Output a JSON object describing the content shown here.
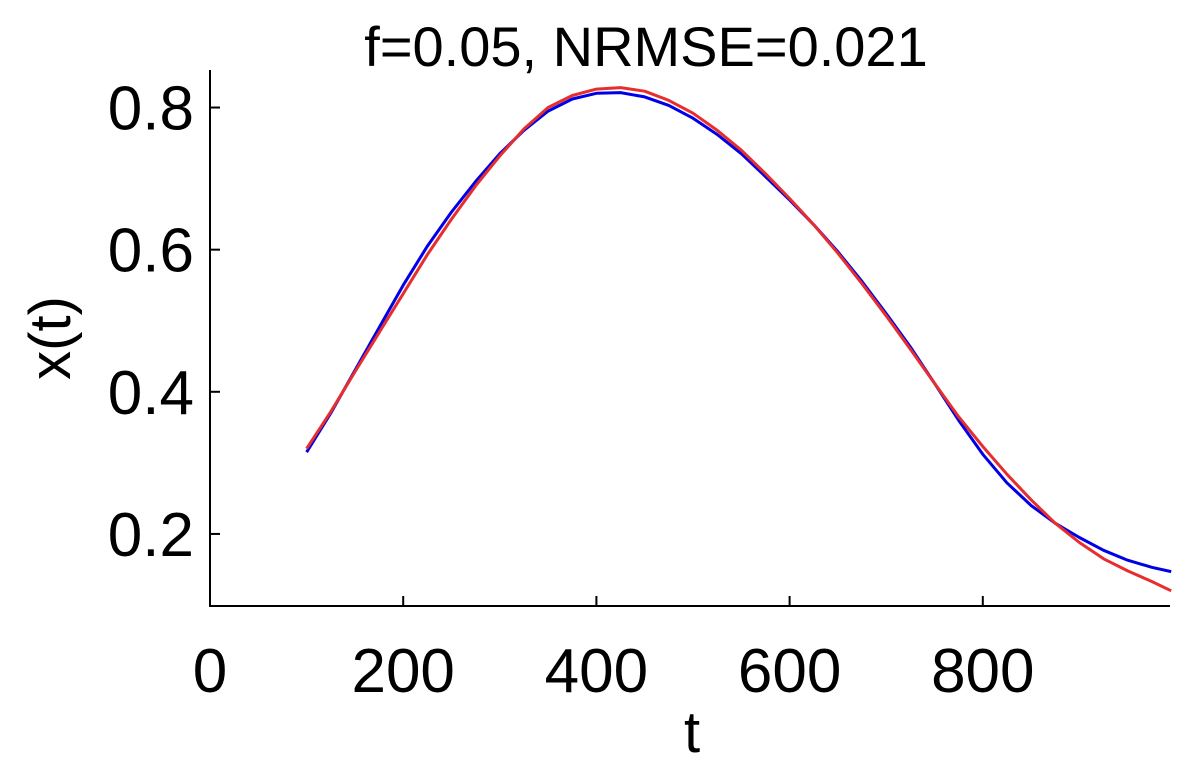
{
  "chart_data": {
    "type": "line",
    "title": "f=0.05, NRMSE=0.021",
    "xlabel": "t",
    "ylabel": "x(t)",
    "xlim": [
      0,
      1000
    ],
    "ylim": [
      0.1,
      0.85
    ],
    "xticks": [
      0,
      200,
      400,
      600,
      800
    ],
    "yticks": [
      0.2,
      0.4,
      0.6,
      0.8
    ],
    "xtick_labels": [
      "0",
      "200",
      "400",
      "600",
      "800"
    ],
    "ytick_labels": [
      "0.2",
      "0.4",
      "0.6",
      "0.8"
    ],
    "grid": false,
    "series": [
      {
        "color": "#0000e6",
        "x": [
          100,
          125,
          150,
          175,
          200,
          225,
          250,
          275,
          300,
          325,
          350,
          375,
          400,
          425,
          450,
          475,
          500,
          525,
          550,
          575,
          600,
          625,
          650,
          675,
          700,
          725,
          750,
          775,
          800,
          825,
          850,
          875,
          900,
          925,
          950,
          975,
          995
        ],
        "y": [
          0.315,
          0.37,
          0.43,
          0.49,
          0.55,
          0.605,
          0.653,
          0.696,
          0.735,
          0.768,
          0.795,
          0.812,
          0.82,
          0.821,
          0.815,
          0.803,
          0.785,
          0.762,
          0.735,
          0.703,
          0.67,
          0.635,
          0.597,
          0.555,
          0.51,
          0.463,
          0.412,
          0.36,
          0.312,
          0.272,
          0.24,
          0.215,
          0.195,
          0.177,
          0.163,
          0.153,
          0.147
        ]
      },
      {
        "color": "#e62e2e",
        "x": [
          100,
          125,
          150,
          175,
          200,
          225,
          250,
          275,
          300,
          325,
          350,
          375,
          400,
          425,
          450,
          475,
          500,
          525,
          550,
          575,
          600,
          625,
          650,
          675,
          700,
          725,
          750,
          775,
          800,
          825,
          850,
          875,
          900,
          925,
          950,
          975,
          995
        ],
        "y": [
          0.32,
          0.372,
          0.428,
          0.483,
          0.538,
          0.593,
          0.643,
          0.69,
          0.732,
          0.77,
          0.8,
          0.817,
          0.826,
          0.828,
          0.823,
          0.81,
          0.792,
          0.768,
          0.74,
          0.707,
          0.672,
          0.635,
          0.595,
          0.552,
          0.507,
          0.46,
          0.412,
          0.365,
          0.323,
          0.284,
          0.248,
          0.215,
          0.188,
          0.165,
          0.148,
          0.133,
          0.12
        ]
      }
    ]
  }
}
